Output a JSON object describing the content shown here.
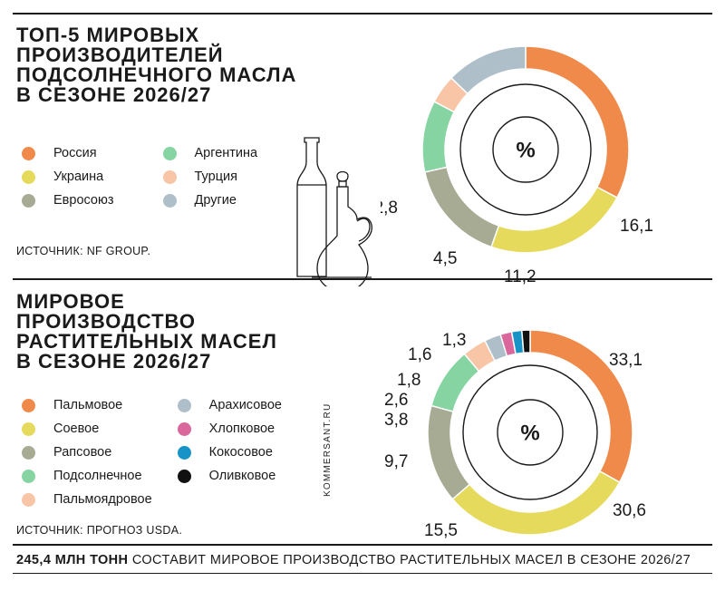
{
  "charts": [
    {
      "title": "ТОП-5 МИРОВЫХ\nПРОИЗВОДИТЕЛЕЙ\nПОДСОЛНЕЧНОГО МАСЛА\nВ СЕЗОНЕ 2026/27",
      "center_label": "%",
      "source": "ИСТОЧНИК: NF GROUP.",
      "legend_rows": 3
    },
    {
      "title": "МИРОВОЕ\nПРОИЗВОДСТВО\nРАСТИТЕЛЬНЫХ МАСЕЛ\nВ СЕЗОНЕ 2026/27",
      "center_label": "%",
      "source": "ИСТОЧНИК: ПРОГНОЗ USDA.",
      "legend_rows": 5
    }
  ],
  "chart_data": [
    {
      "type": "pie",
      "title": "ТОП-5 МИРОВЫХ ПРОИЗВОДИТЕЛЕЙ ПОДСОЛНЕЧНОГО МАСЛА В СЕЗОНЕ 2026/27",
      "unit": "%",
      "slices": [
        {
          "label": "Россия",
          "value": 32.7,
          "display": "32,7",
          "color": "#f08a4b"
        },
        {
          "label": "Украина",
          "value": 22.7,
          "display": "22,7",
          "color": "#e5da5c"
        },
        {
          "label": "Евросоюз",
          "value": 16.1,
          "display": "16,1",
          "color": "#a7ab93"
        },
        {
          "label": "Аргентина",
          "value": 11.2,
          "display": "11,2",
          "color": "#86d4a2"
        },
        {
          "label": "Турция",
          "value": 4.5,
          "display": "4,5",
          "color": "#f8c5a6"
        },
        {
          "label": "Другие",
          "value": 12.8,
          "display": "12,8",
          "color": "#aebfca"
        }
      ]
    },
    {
      "type": "pie",
      "title": "МИРОВОЕ ПРОИЗВОДСТВО РАСТИТЕЛЬНЫХ МАСЕЛ В СЕЗОНЕ 2026/27",
      "unit": "%",
      "slices": [
        {
          "label": "Пальмовое",
          "value": 33.1,
          "display": "33,1",
          "color": "#f08a4b"
        },
        {
          "label": "Соевое",
          "value": 30.6,
          "display": "30,6",
          "color": "#e5da5c"
        },
        {
          "label": "Рапсовое",
          "value": 15.5,
          "display": "15,5",
          "color": "#a7ab93"
        },
        {
          "label": "Подсолнечное",
          "value": 9.7,
          "display": "9,7",
          "color": "#86d4a2"
        },
        {
          "label": "Пальмоядровое",
          "value": 3.8,
          "display": "3,8",
          "color": "#f8c5a6"
        },
        {
          "label": "Арахисовое",
          "value": 2.6,
          "display": "2,6",
          "color": "#aebfca"
        },
        {
          "label": "Хлопковое",
          "value": 1.8,
          "display": "1,8",
          "color": "#d9679c"
        },
        {
          "label": "Кокосовое",
          "value": 1.6,
          "display": "1,6",
          "color": "#1793c8"
        },
        {
          "label": "Оливковое",
          "value": 1.3,
          "display": "1,3",
          "color": "#111111"
        }
      ]
    }
  ],
  "footer": {
    "bold": "245,4 МЛН ТОНН",
    "rest": " СОСТАВИТ МИРОВОЕ ПРОИЗВОДСТВО РАСТИТЕЛЬНЫХ МАСЕЛ В СЕЗОНЕ 2026/27"
  },
  "credit": "KOMMERSANT.RU",
  "illustration": {
    "icon": "oil-bottles-icon"
  }
}
